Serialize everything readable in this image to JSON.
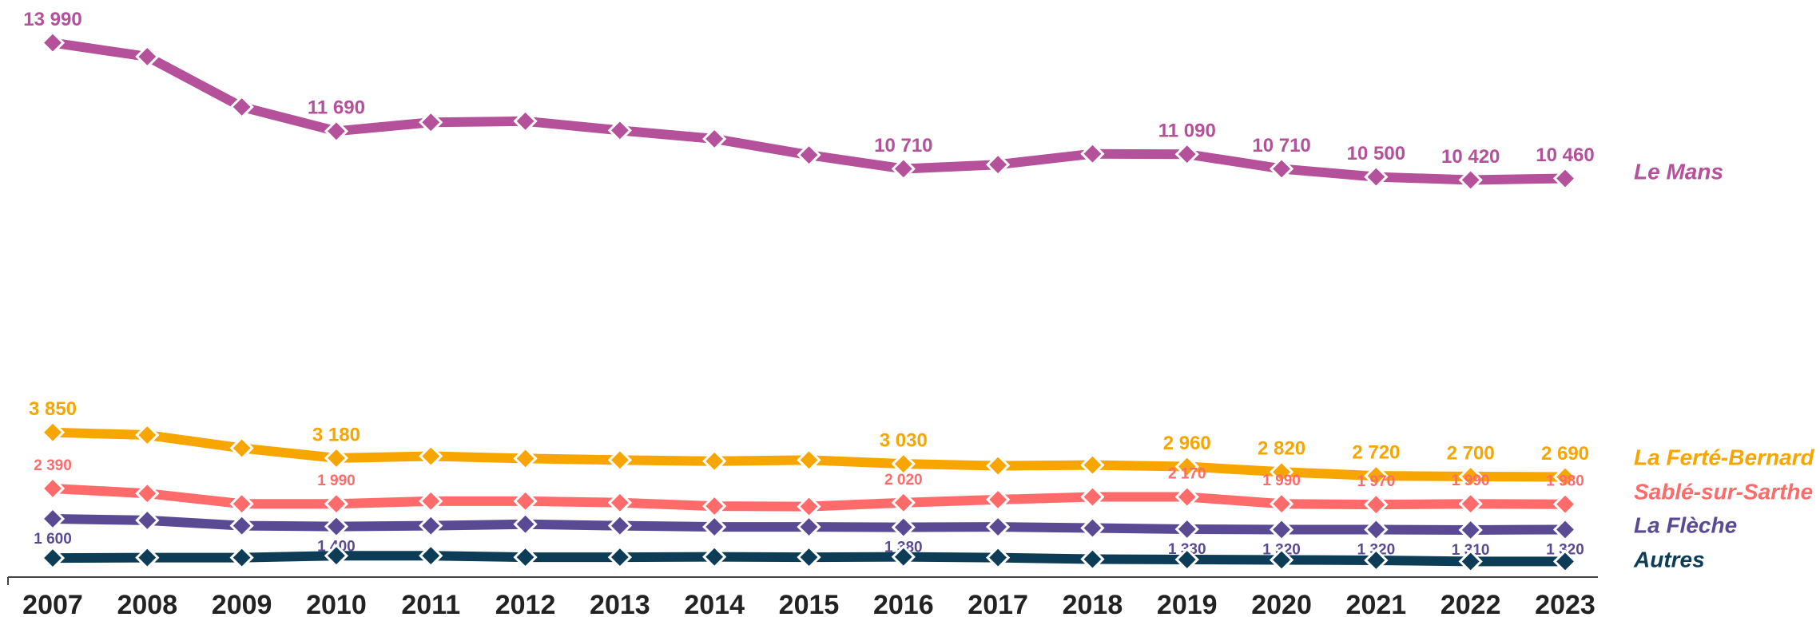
{
  "chart_data": {
    "type": "line",
    "categories": [
      "2007",
      "2008",
      "2009",
      "2010",
      "2011",
      "2012",
      "2013",
      "2014",
      "2015",
      "2016",
      "2017",
      "2018",
      "2019",
      "2020",
      "2021",
      "2022",
      "2023"
    ],
    "ylim": [
      0,
      15000
    ],
    "series": [
      {
        "name": "Le Mans",
        "color": "#b5509a",
        "values": [
          13990,
          13630,
          12320,
          11690,
          11920,
          11950,
          11710,
          11490,
          11070,
          10710,
          10820,
          11100,
          11090,
          10710,
          10500,
          10420,
          10460
        ],
        "value_labels": [
          "13 990",
          null,
          null,
          "11 690",
          null,
          null,
          null,
          null,
          null,
          "10 710",
          null,
          null,
          "11 090",
          "10 710",
          "10 500",
          "10 420",
          "10 460"
        ]
      },
      {
        "name": "La Ferté-Bernard",
        "color": "#f7a600",
        "values": [
          3850,
          3780,
          3440,
          3180,
          3230,
          3170,
          3130,
          3100,
          3130,
          3030,
          2980,
          3000,
          2960,
          2820,
          2720,
          2700,
          2690
        ],
        "value_labels": [
          "3 850",
          null,
          null,
          "3 180",
          null,
          null,
          null,
          null,
          null,
          "3 030",
          null,
          null,
          "2 960",
          "2 820",
          "2 720",
          "2 700",
          "2 690"
        ]
      },
      {
        "name": "Sablé-sur-Sarthe",
        "color": "#ff6b6b",
        "values": [
          2390,
          2260,
          1990,
          1990,
          2060,
          2060,
          2020,
          1930,
          1920,
          2020,
          2100,
          2170,
          2170,
          1990,
          1970,
          1990,
          1980
        ],
        "value_labels": [
          "2 390",
          null,
          null,
          "1 990",
          null,
          null,
          null,
          null,
          null,
          "2 020",
          null,
          null,
          "2 170",
          "1 990",
          "1 970",
          "1 990",
          "1 980"
        ]
      },
      {
        "name": "La Flèche",
        "color": "#5a4a94",
        "values": [
          1600,
          1560,
          1420,
          1400,
          1420,
          1460,
          1420,
          1390,
          1390,
          1380,
          1390,
          1360,
          1330,
          1320,
          1320,
          1310,
          1320
        ],
        "value_labels": [
          "1 600",
          null,
          null,
          "1 400",
          null,
          null,
          null,
          null,
          null,
          "1 380",
          null,
          null,
          "1 330",
          "1 320",
          "1 320",
          "1 310",
          "1 320"
        ]
      },
      {
        "name": "Autres",
        "color": "#0d3d56",
        "values": [
          580,
          590,
          590,
          640,
          640,
          600,
          600,
          610,
          600,
          610,
          590,
          550,
          540,
          530,
          520,
          490,
          490
        ]
      }
    ]
  }
}
